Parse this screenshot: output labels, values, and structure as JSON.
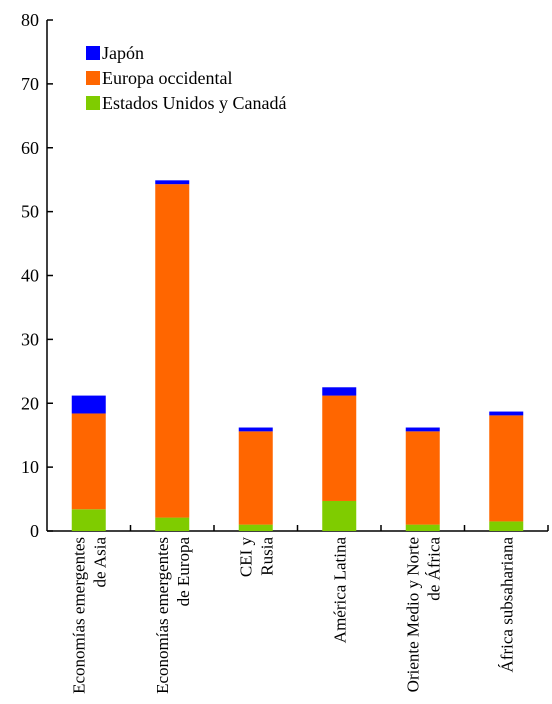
{
  "chart_data": {
    "type": "bar",
    "stacked": true,
    "title": "",
    "xlabel": "",
    "ylabel": "",
    "ylim": [
      0,
      80
    ],
    "yticks": [
      0,
      10,
      20,
      30,
      40,
      50,
      60,
      70,
      80
    ],
    "grid": false,
    "legend_position": "top-left",
    "categories": [
      [
        "Economías emergentes",
        "de Asia"
      ],
      [
        "Economías emergentes",
        "de Europa"
      ],
      [
        "CEI y",
        "Rusia"
      ],
      [
        "América Latina"
      ],
      [
        "Oriente Medio y Norte",
        "de África"
      ],
      [
        "África subsahariana"
      ]
    ],
    "series": [
      {
        "name": "Estados Unidos y Canadá",
        "color": "#7fcc00",
        "values": [
          3.4,
          2.1,
          1.0,
          4.7,
          1.0,
          1.5
        ]
      },
      {
        "name": "Europa occidental",
        "color": "#ff6600",
        "values": [
          15.0,
          52.2,
          14.6,
          16.5,
          14.6,
          16.6
        ]
      },
      {
        "name": "Japón",
        "color": "#0000ff",
        "values": [
          2.8,
          0.6,
          0.6,
          1.3,
          0.6,
          0.6
        ]
      }
    ],
    "legend_order": [
      "Japón",
      "Europa occidental",
      "Estados Unidos y Canadá"
    ]
  }
}
